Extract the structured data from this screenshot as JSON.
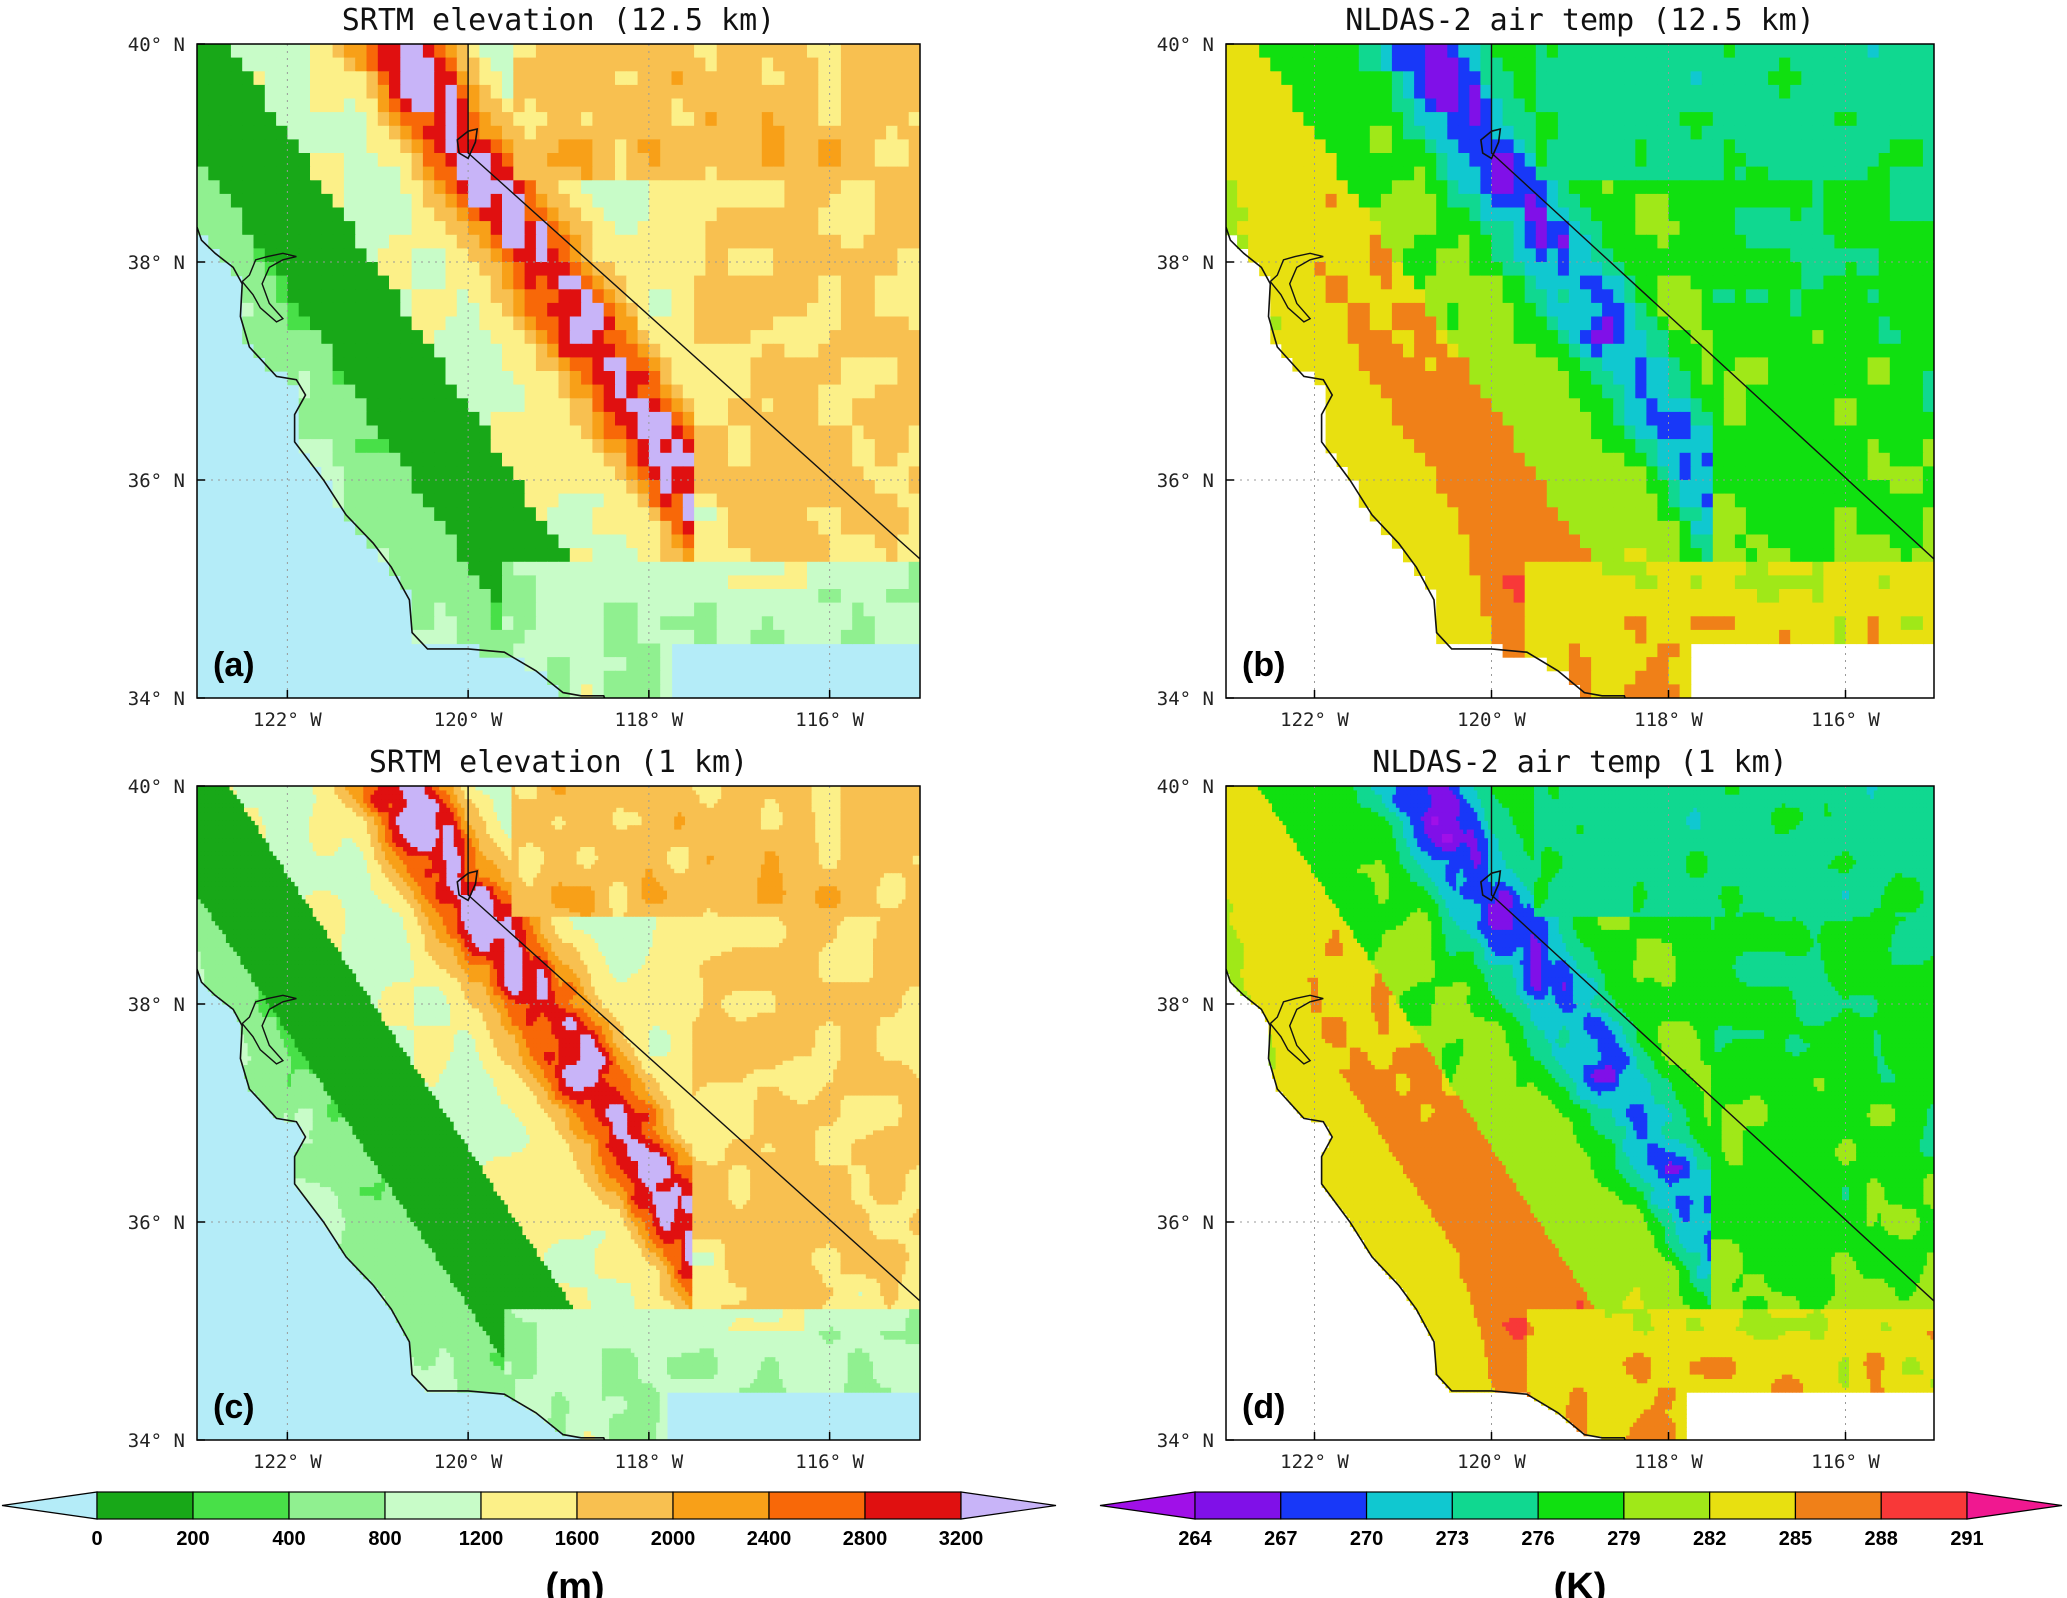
{
  "panels": [
    {
      "id": "a",
      "title": "SRTM elevation (12.5 km)",
      "label": "(a)",
      "variable": "elevation",
      "resolution": "coarse"
    },
    {
      "id": "b",
      "title": "NLDAS-2 air temp (12.5 km)",
      "label": "(b)",
      "variable": "temperature",
      "resolution": "coarse"
    },
    {
      "id": "c",
      "title": "SRTM elevation (1 km)",
      "label": "(c)",
      "variable": "elevation",
      "resolution": "fine"
    },
    {
      "id": "d",
      "title": "NLDAS-2 air temp (1 km)",
      "label": "(d)",
      "variable": "temperature",
      "resolution": "fine"
    }
  ],
  "axes": {
    "lat_ticks": [
      "40° N",
      "38° N",
      "36° N",
      "34° N"
    ],
    "lon_ticks": [
      "122° W",
      "120° W",
      "118° W",
      "116° W"
    ],
    "lat_range": [
      34,
      40
    ],
    "lon_range": [
      -123,
      -115
    ]
  },
  "colorbars": {
    "elevation": {
      "unit": "(m)",
      "labels": [
        "0",
        "200",
        "400",
        "800",
        "1200",
        "1600",
        "2000",
        "2400",
        "2800",
        "3200"
      ],
      "colors": [
        "#b4ecf8",
        "#18a818",
        "#48e048",
        "#90f090",
        "#c8fcc8",
        "#fcf088",
        "#f8c050",
        "#f8a018",
        "#f86808",
        "#e01010",
        "#c8b4f8"
      ]
    },
    "temperature": {
      "unit": "(K)",
      "labels": [
        "264",
        "267",
        "270",
        "273",
        "276",
        "279",
        "282",
        "285",
        "288",
        "291"
      ],
      "colors": [
        "#a010e8",
        "#8010e8",
        "#1838f8",
        "#10c8d0",
        "#10d890",
        "#10e010",
        "#a0e818",
        "#e8e010",
        "#f08018",
        "#f83838",
        "#f01890"
      ]
    }
  }
}
